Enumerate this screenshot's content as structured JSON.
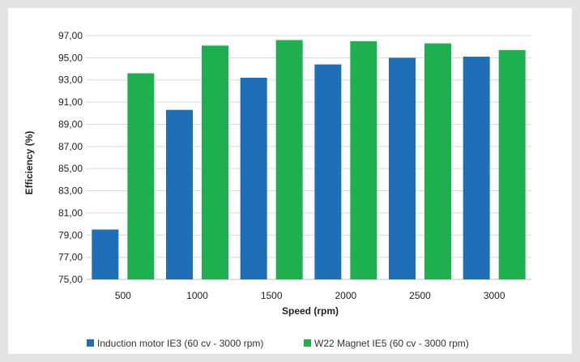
{
  "chart_data": {
    "type": "bar",
    "title": "",
    "xlabel": "Speed (rpm)",
    "ylabel": "Efficiency (%)",
    "categories": [
      "500",
      "1000",
      "1500",
      "2000",
      "2500",
      "3000"
    ],
    "ylim": [
      75,
      97
    ],
    "ytick_step": 2,
    "ytick_labels": [
      "75,00",
      "77,00",
      "79,00",
      "81,00",
      "83,00",
      "85,00",
      "87,00",
      "89,00",
      "91,00",
      "93,00",
      "95,00",
      "97,00"
    ],
    "grid": true,
    "legend_position": "bottom",
    "series": [
      {
        "name": "Induction motor IE3 (60 cv - 3000 rpm)",
        "color": "#1f6fb8",
        "values": [
          79.5,
          90.3,
          93.2,
          94.4,
          95.0,
          95.1
        ]
      },
      {
        "name": "W22 Magnet IE5 (60 cv - 3000 rpm)",
        "color": "#1eb04f",
        "values": [
          93.6,
          96.1,
          96.6,
          96.5,
          96.3,
          95.7
        ]
      }
    ]
  }
}
